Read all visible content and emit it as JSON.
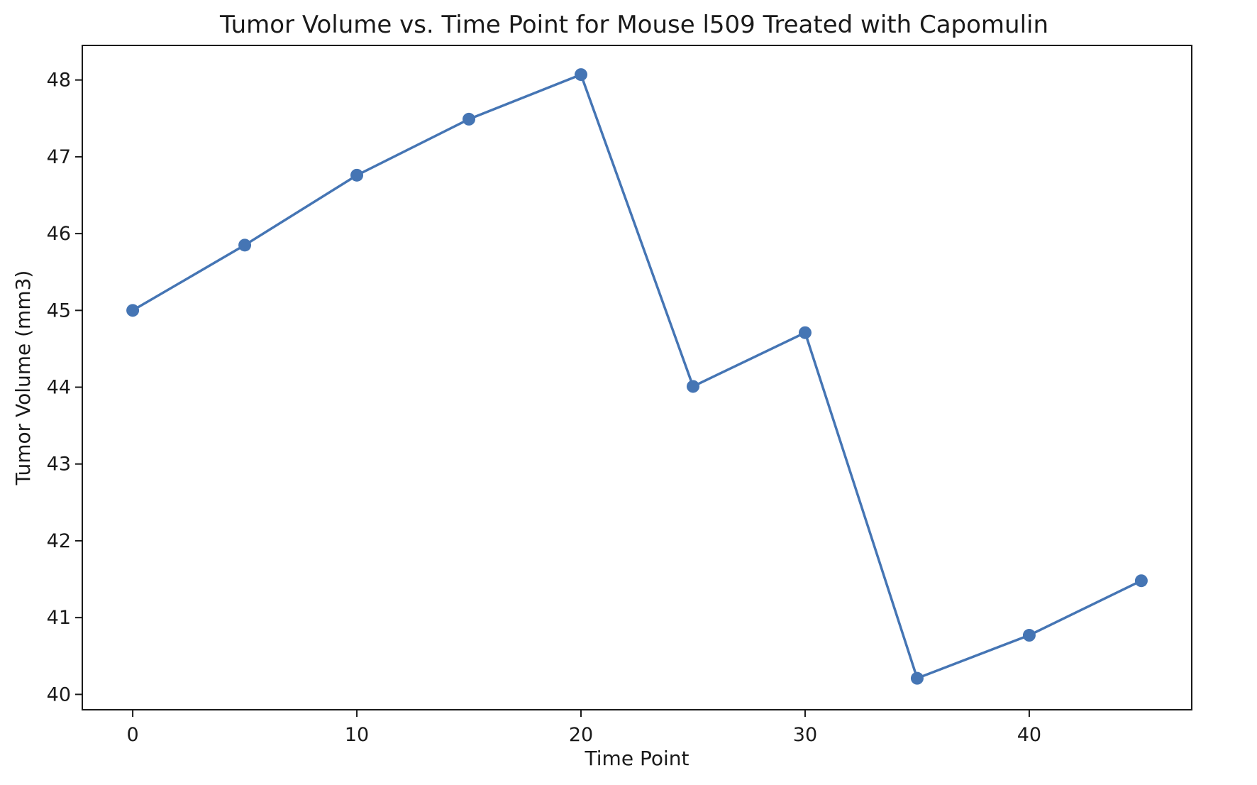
{
  "chart_data": {
    "type": "line",
    "title": "Tumor Volume vs. Time Point for Mouse l509 Treated with Capomulin",
    "xlabel": "Time Point",
    "ylabel": "Tumor Volume (mm3)",
    "xlim": [
      -2.25,
      47.25
    ],
    "ylim": [
      39.8,
      48.45
    ],
    "x_ticks": [
      0,
      10,
      20,
      30,
      40
    ],
    "y_ticks": [
      40,
      41,
      42,
      43,
      44,
      45,
      46,
      47,
      48
    ],
    "grid": false,
    "legend": "none",
    "series": [
      {
        "x": [
          0,
          5,
          10,
          15,
          20,
          25,
          30,
          35,
          40,
          45
        ],
        "values": [
          45.0,
          45.85,
          46.76,
          47.49,
          48.07,
          44.01,
          44.71,
          40.21,
          40.77,
          41.48
        ],
        "color": "#4575b4",
        "marker": "circle"
      }
    ]
  }
}
